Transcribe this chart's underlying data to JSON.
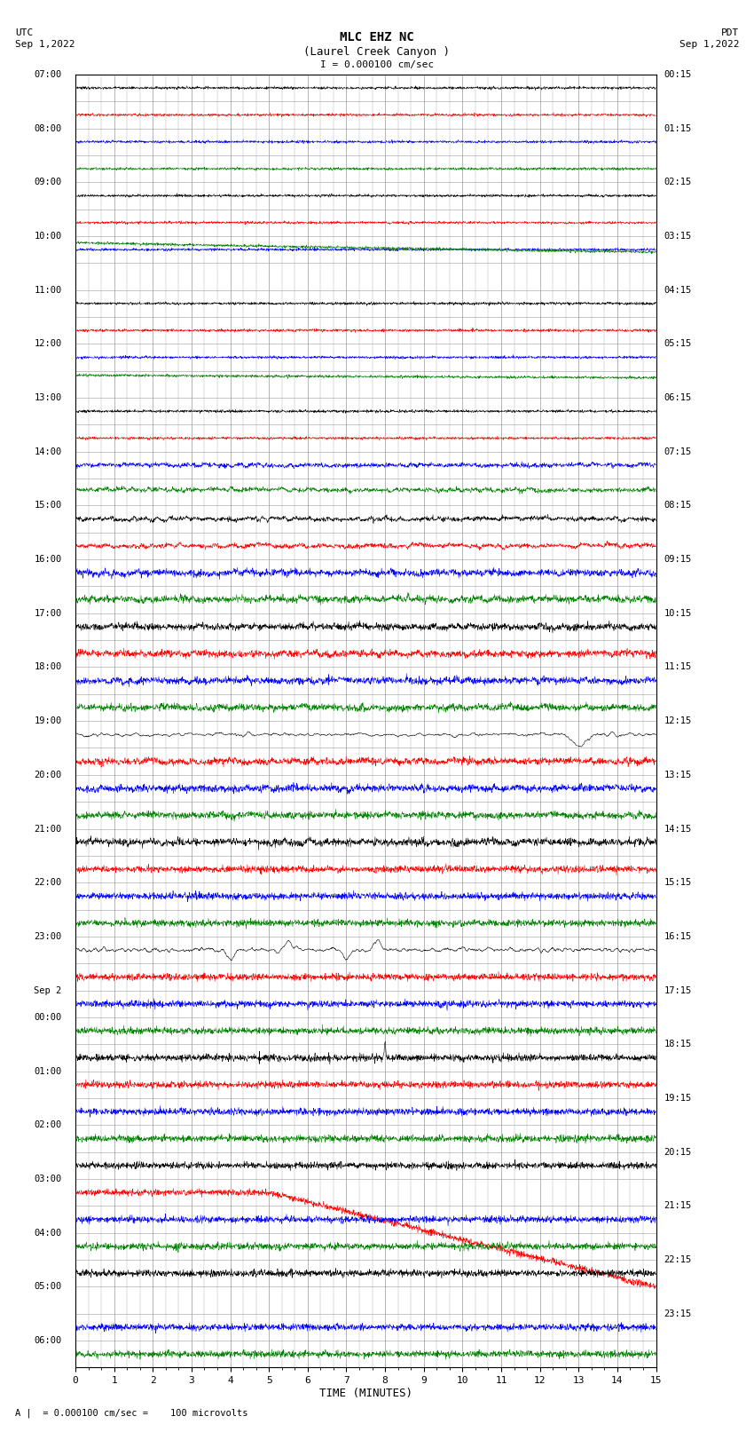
{
  "title_line1": "MLC EHZ NC",
  "title_line2": "(Laurel Creek Canyon )",
  "scale_label": "I = 0.000100 cm/sec",
  "utc_label": "UTC",
  "utc_date": "Sep 1,2022",
  "pdt_label": "PDT",
  "pdt_date": "Sep 1,2022",
  "bottom_label": "A |  = 0.000100 cm/sec =    100 microvolts",
  "xlabel": "TIME (MINUTES)",
  "utc_labels": [
    "07:00",
    "",
    "08:00",
    "",
    "09:00",
    "",
    "10:00",
    "",
    "11:00",
    "",
    "12:00",
    "",
    "13:00",
    "",
    "14:00",
    "",
    "15:00",
    "",
    "16:00",
    "",
    "17:00",
    "",
    "18:00",
    "",
    "19:00",
    "",
    "20:00",
    "",
    "21:00",
    "",
    "22:00",
    "",
    "23:00",
    "",
    "Sep 2",
    "00:00",
    "",
    "01:00",
    "",
    "02:00",
    "",
    "03:00",
    "",
    "04:00",
    "",
    "05:00",
    "",
    "06:00",
    ""
  ],
  "pdt_labels": [
    "00:15",
    "",
    "01:15",
    "",
    "02:15",
    "",
    "03:15",
    "",
    "04:15",
    "",
    "05:15",
    "",
    "06:15",
    "",
    "07:15",
    "",
    "08:15",
    "",
    "09:15",
    "",
    "10:15",
    "",
    "11:15",
    "",
    "12:15",
    "",
    "13:15",
    "",
    "14:15",
    "",
    "15:15",
    "",
    "16:15",
    "",
    "17:15",
    "",
    "18:15",
    "",
    "19:15",
    "",
    "20:15",
    "",
    "21:15",
    "",
    "22:15",
    "",
    "23:15",
    ""
  ],
  "num_rows": 48,
  "x_max": 15,
  "colors": [
    "black",
    "red",
    "blue",
    "green"
  ],
  "bg_color": "white",
  "grid_color": "#999999"
}
